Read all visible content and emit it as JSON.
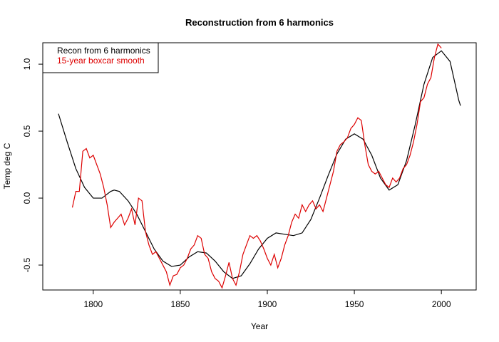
{
  "chart_data": {
    "type": "line",
    "title": "Reconstruction from 6 harmonics",
    "xlabel": "Year",
    "ylabel": "Temp deg C",
    "xlim": [
      1771,
      2020
    ],
    "ylim": [
      -0.686,
      1.16
    ],
    "xticks": [
      1800,
      1850,
      1900,
      1950,
      2000
    ],
    "yticks": [
      {
        "value": -0.5,
        "label": "-0.5"
      },
      {
        "value": 0,
        "label": "0.0"
      },
      0.5,
      {
        "value": 1,
        "label": "1.0"
      }
    ],
    "legend": "top-left",
    "series": [
      {
        "name": "Recon from 6 harmonics",
        "color": "#000000",
        "x": [
          1780,
          1785,
          1790,
          1795,
          1800,
          1805,
          1810,
          1812,
          1815,
          1820,
          1825,
          1830,
          1835,
          1840,
          1845,
          1850,
          1855,
          1860,
          1865,
          1870,
          1875,
          1880,
          1885,
          1890,
          1895,
          1900,
          1905,
          1910,
          1915,
          1920,
          1925,
          1930,
          1935,
          1940,
          1945,
          1950,
          1955,
          1960,
          1965,
          1970,
          1975,
          1980,
          1985,
          1990,
          1995,
          2000,
          2005,
          2010,
          2011
        ],
        "values": [
          0.63,
          0.42,
          0.22,
          0.08,
          0.0,
          0.0,
          0.05,
          0.06,
          0.05,
          -0.02,
          -0.12,
          -0.25,
          -0.38,
          -0.47,
          -0.51,
          -0.5,
          -0.44,
          -0.4,
          -0.41,
          -0.47,
          -0.55,
          -0.6,
          -0.58,
          -0.49,
          -0.38,
          -0.3,
          -0.26,
          -0.27,
          -0.28,
          -0.26,
          -0.16,
          0.0,
          0.17,
          0.33,
          0.44,
          0.48,
          0.44,
          0.32,
          0.15,
          0.06,
          0.1,
          0.28,
          0.55,
          0.85,
          1.05,
          1.1,
          1.02,
          0.73,
          0.69
        ]
      },
      {
        "name": "15-year boxcar smooth",
        "color": "#dd0000",
        "x": [
          1788,
          1790,
          1792,
          1794,
          1796,
          1798,
          1800,
          1802,
          1804,
          1806,
          1808,
          1810,
          1812,
          1814,
          1816,
          1818,
          1820,
          1822,
          1824,
          1826,
          1828,
          1830,
          1832,
          1834,
          1836,
          1838,
          1840,
          1842,
          1844,
          1846,
          1848,
          1850,
          1852,
          1854,
          1856,
          1858,
          1860,
          1862,
          1864,
          1866,
          1868,
          1870,
          1872,
          1874,
          1876,
          1878,
          1880,
          1882,
          1884,
          1886,
          1888,
          1890,
          1892,
          1894,
          1896,
          1898,
          1900,
          1902,
          1904,
          1906,
          1908,
          1910,
          1912,
          1914,
          1916,
          1918,
          1920,
          1922,
          1924,
          1926,
          1928,
          1930,
          1932,
          1934,
          1936,
          1938,
          1940,
          1942,
          1944,
          1946,
          1948,
          1950,
          1952,
          1954,
          1956,
          1958,
          1960,
          1962,
          1964,
          1966,
          1968,
          1970,
          1972,
          1974,
          1976,
          1978,
          1980,
          1982,
          1984,
          1986,
          1988,
          1990,
          1992,
          1994,
          1996,
          1998,
          2000
        ],
        "values": [
          -0.07,
          0.05,
          0.05,
          0.35,
          0.37,
          0.3,
          0.32,
          0.25,
          0.18,
          0.08,
          -0.05,
          -0.22,
          -0.18,
          -0.15,
          -0.12,
          -0.2,
          -0.15,
          -0.08,
          -0.2,
          0.0,
          -0.02,
          -0.25,
          -0.35,
          -0.42,
          -0.4,
          -0.45,
          -0.5,
          -0.55,
          -0.65,
          -0.58,
          -0.57,
          -0.52,
          -0.5,
          -0.45,
          -0.38,
          -0.35,
          -0.28,
          -0.3,
          -0.42,
          -0.45,
          -0.55,
          -0.6,
          -0.62,
          -0.67,
          -0.58,
          -0.48,
          -0.6,
          -0.65,
          -0.55,
          -0.42,
          -0.35,
          -0.28,
          -0.3,
          -0.28,
          -0.32,
          -0.38,
          -0.45,
          -0.5,
          -0.42,
          -0.52,
          -0.45,
          -0.35,
          -0.28,
          -0.18,
          -0.12,
          -0.15,
          -0.05,
          -0.1,
          -0.05,
          -0.02,
          -0.08,
          -0.05,
          -0.1,
          0.0,
          0.1,
          0.2,
          0.35,
          0.4,
          0.42,
          0.45,
          0.52,
          0.55,
          0.6,
          0.58,
          0.4,
          0.25,
          0.2,
          0.18,
          0.2,
          0.15,
          0.1,
          0.08,
          0.15,
          0.12,
          0.15,
          0.22,
          0.25,
          0.32,
          0.42,
          0.55,
          0.72,
          0.75,
          0.85,
          0.9,
          1.05,
          1.15,
          1.12
        ]
      }
    ]
  }
}
